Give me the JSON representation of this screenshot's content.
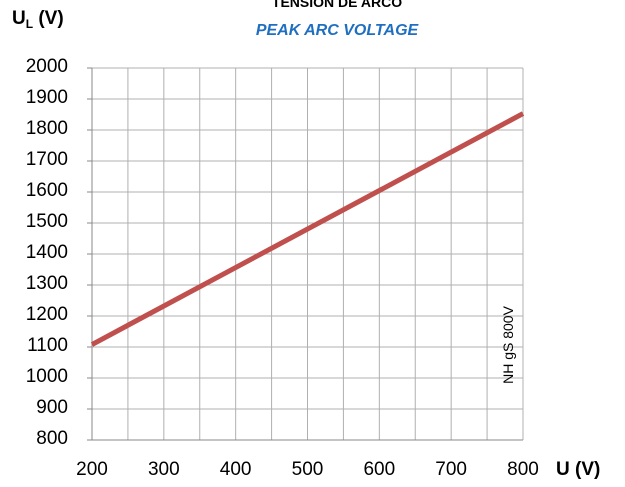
{
  "chart_data": {
    "type": "line",
    "title": "TENSION DE ARCO",
    "subtitle": "PEAK ARC VOLTAGE",
    "ylabel": "U",
    "ylabel_sub": "L",
    "ylabel_unit": "(V)",
    "xlabel": "U (V)",
    "xlim": [
      200,
      800
    ],
    "ylim": [
      800,
      2000
    ],
    "xticks": [
      "200",
      "300",
      "400",
      "500",
      "600",
      "700",
      "800"
    ],
    "yticks": [
      "2000",
      "1900",
      "1800",
      "1700",
      "1600",
      "1500",
      "1400",
      "1300",
      "1200",
      "1100",
      "1000",
      "900",
      "800"
    ],
    "grid": true,
    "annotation": "NH gS 800V",
    "series": [
      {
        "color": "#c0504d",
        "x": [
          200,
          800
        ],
        "y": [
          1108,
          1853
        ]
      }
    ]
  }
}
